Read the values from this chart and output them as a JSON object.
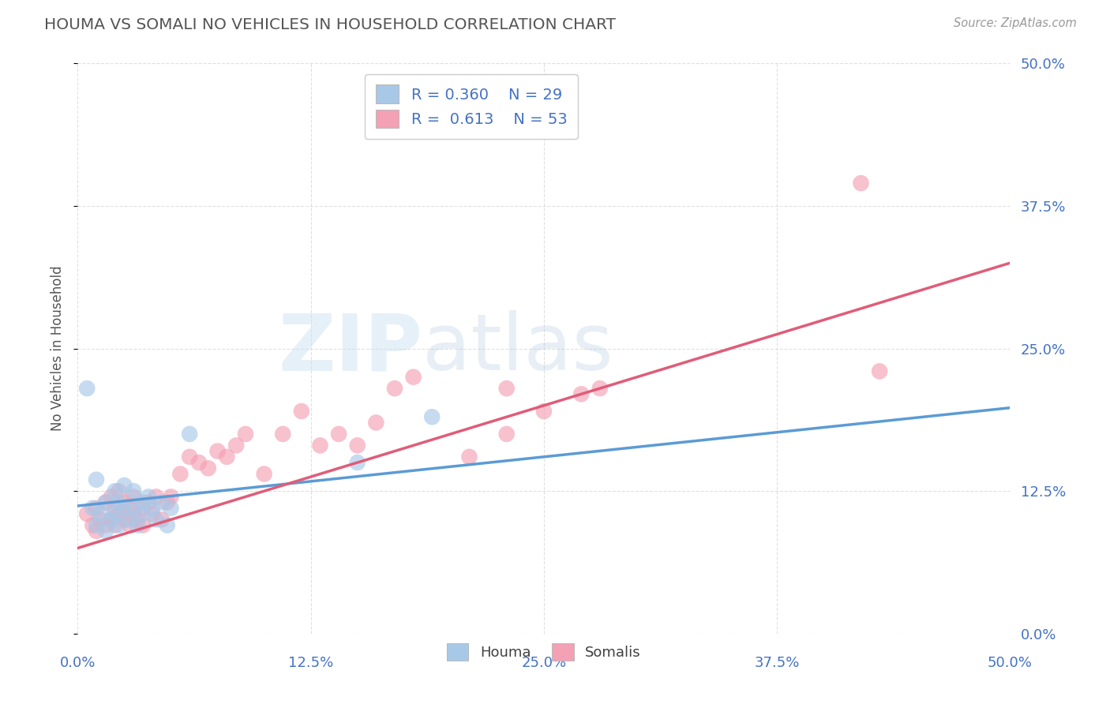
{
  "title": "HOUMA VS SOMALI NO VEHICLES IN HOUSEHOLD CORRELATION CHART",
  "source": "Source: ZipAtlas.com",
  "ylabel": "No Vehicles in Household",
  "watermark_zip": "ZIP",
  "watermark_atlas": "atlas",
  "houma_R": "0.360",
  "houma_N": "29",
  "somali_R": "0.613",
  "somali_N": "53",
  "houma_color": "#a8c8e8",
  "somali_color": "#f4a0b5",
  "houma_line_color": "#5b9bd5",
  "somali_line_color": "#e05c78",
  "legend_text_color": "#4472c4",
  "title_color": "#555555",
  "axis_label_color": "#4472c4",
  "background_color": "#ffffff",
  "grid_color": "#cccccc",
  "xlim": [
    0.0,
    0.5
  ],
  "ylim": [
    0.0,
    0.5
  ],
  "xticks": [
    0.0,
    0.125,
    0.25,
    0.375,
    0.5
  ],
  "yticks": [
    0.0,
    0.125,
    0.25,
    0.375,
    0.5
  ],
  "houma_line_x0": 0.0,
  "houma_line_y0": 0.112,
  "houma_line_x1": 0.5,
  "houma_line_y1": 0.198,
  "somali_line_x0": 0.0,
  "somali_line_y0": 0.075,
  "somali_line_x1": 0.5,
  "somali_line_y1": 0.325,
  "houma_x": [
    0.005,
    0.008,
    0.01,
    0.01,
    0.012,
    0.015,
    0.015,
    0.018,
    0.02,
    0.02,
    0.022,
    0.022,
    0.025,
    0.025,
    0.028,
    0.03,
    0.03,
    0.032,
    0.035,
    0.035,
    0.038,
    0.04,
    0.042,
    0.045,
    0.048,
    0.05,
    0.06,
    0.15,
    0.19
  ],
  "houma_y": [
    0.215,
    0.11,
    0.095,
    0.135,
    0.105,
    0.09,
    0.115,
    0.1,
    0.105,
    0.125,
    0.095,
    0.115,
    0.11,
    0.13,
    0.1,
    0.11,
    0.125,
    0.095,
    0.115,
    0.105,
    0.12,
    0.11,
    0.1,
    0.115,
    0.095,
    0.11,
    0.175,
    0.15,
    0.19
  ],
  "somali_x": [
    0.005,
    0.008,
    0.01,
    0.01,
    0.012,
    0.015,
    0.015,
    0.018,
    0.018,
    0.02,
    0.02,
    0.022,
    0.022,
    0.025,
    0.025,
    0.028,
    0.028,
    0.03,
    0.03,
    0.032,
    0.035,
    0.035,
    0.038,
    0.04,
    0.042,
    0.045,
    0.048,
    0.05,
    0.055,
    0.06,
    0.065,
    0.07,
    0.075,
    0.08,
    0.085,
    0.09,
    0.1,
    0.11,
    0.12,
    0.13,
    0.14,
    0.15,
    0.16,
    0.17,
    0.18,
    0.21,
    0.23,
    0.23,
    0.25,
    0.27,
    0.28,
    0.42,
    0.43
  ],
  "somali_y": [
    0.105,
    0.095,
    0.11,
    0.09,
    0.1,
    0.095,
    0.115,
    0.1,
    0.12,
    0.11,
    0.095,
    0.105,
    0.125,
    0.1,
    0.115,
    0.095,
    0.11,
    0.105,
    0.12,
    0.1,
    0.11,
    0.095,
    0.115,
    0.105,
    0.12,
    0.1,
    0.115,
    0.12,
    0.14,
    0.155,
    0.15,
    0.145,
    0.16,
    0.155,
    0.165,
    0.175,
    0.14,
    0.175,
    0.195,
    0.165,
    0.175,
    0.165,
    0.185,
    0.215,
    0.225,
    0.155,
    0.215,
    0.175,
    0.195,
    0.21,
    0.215,
    0.395,
    0.23
  ]
}
